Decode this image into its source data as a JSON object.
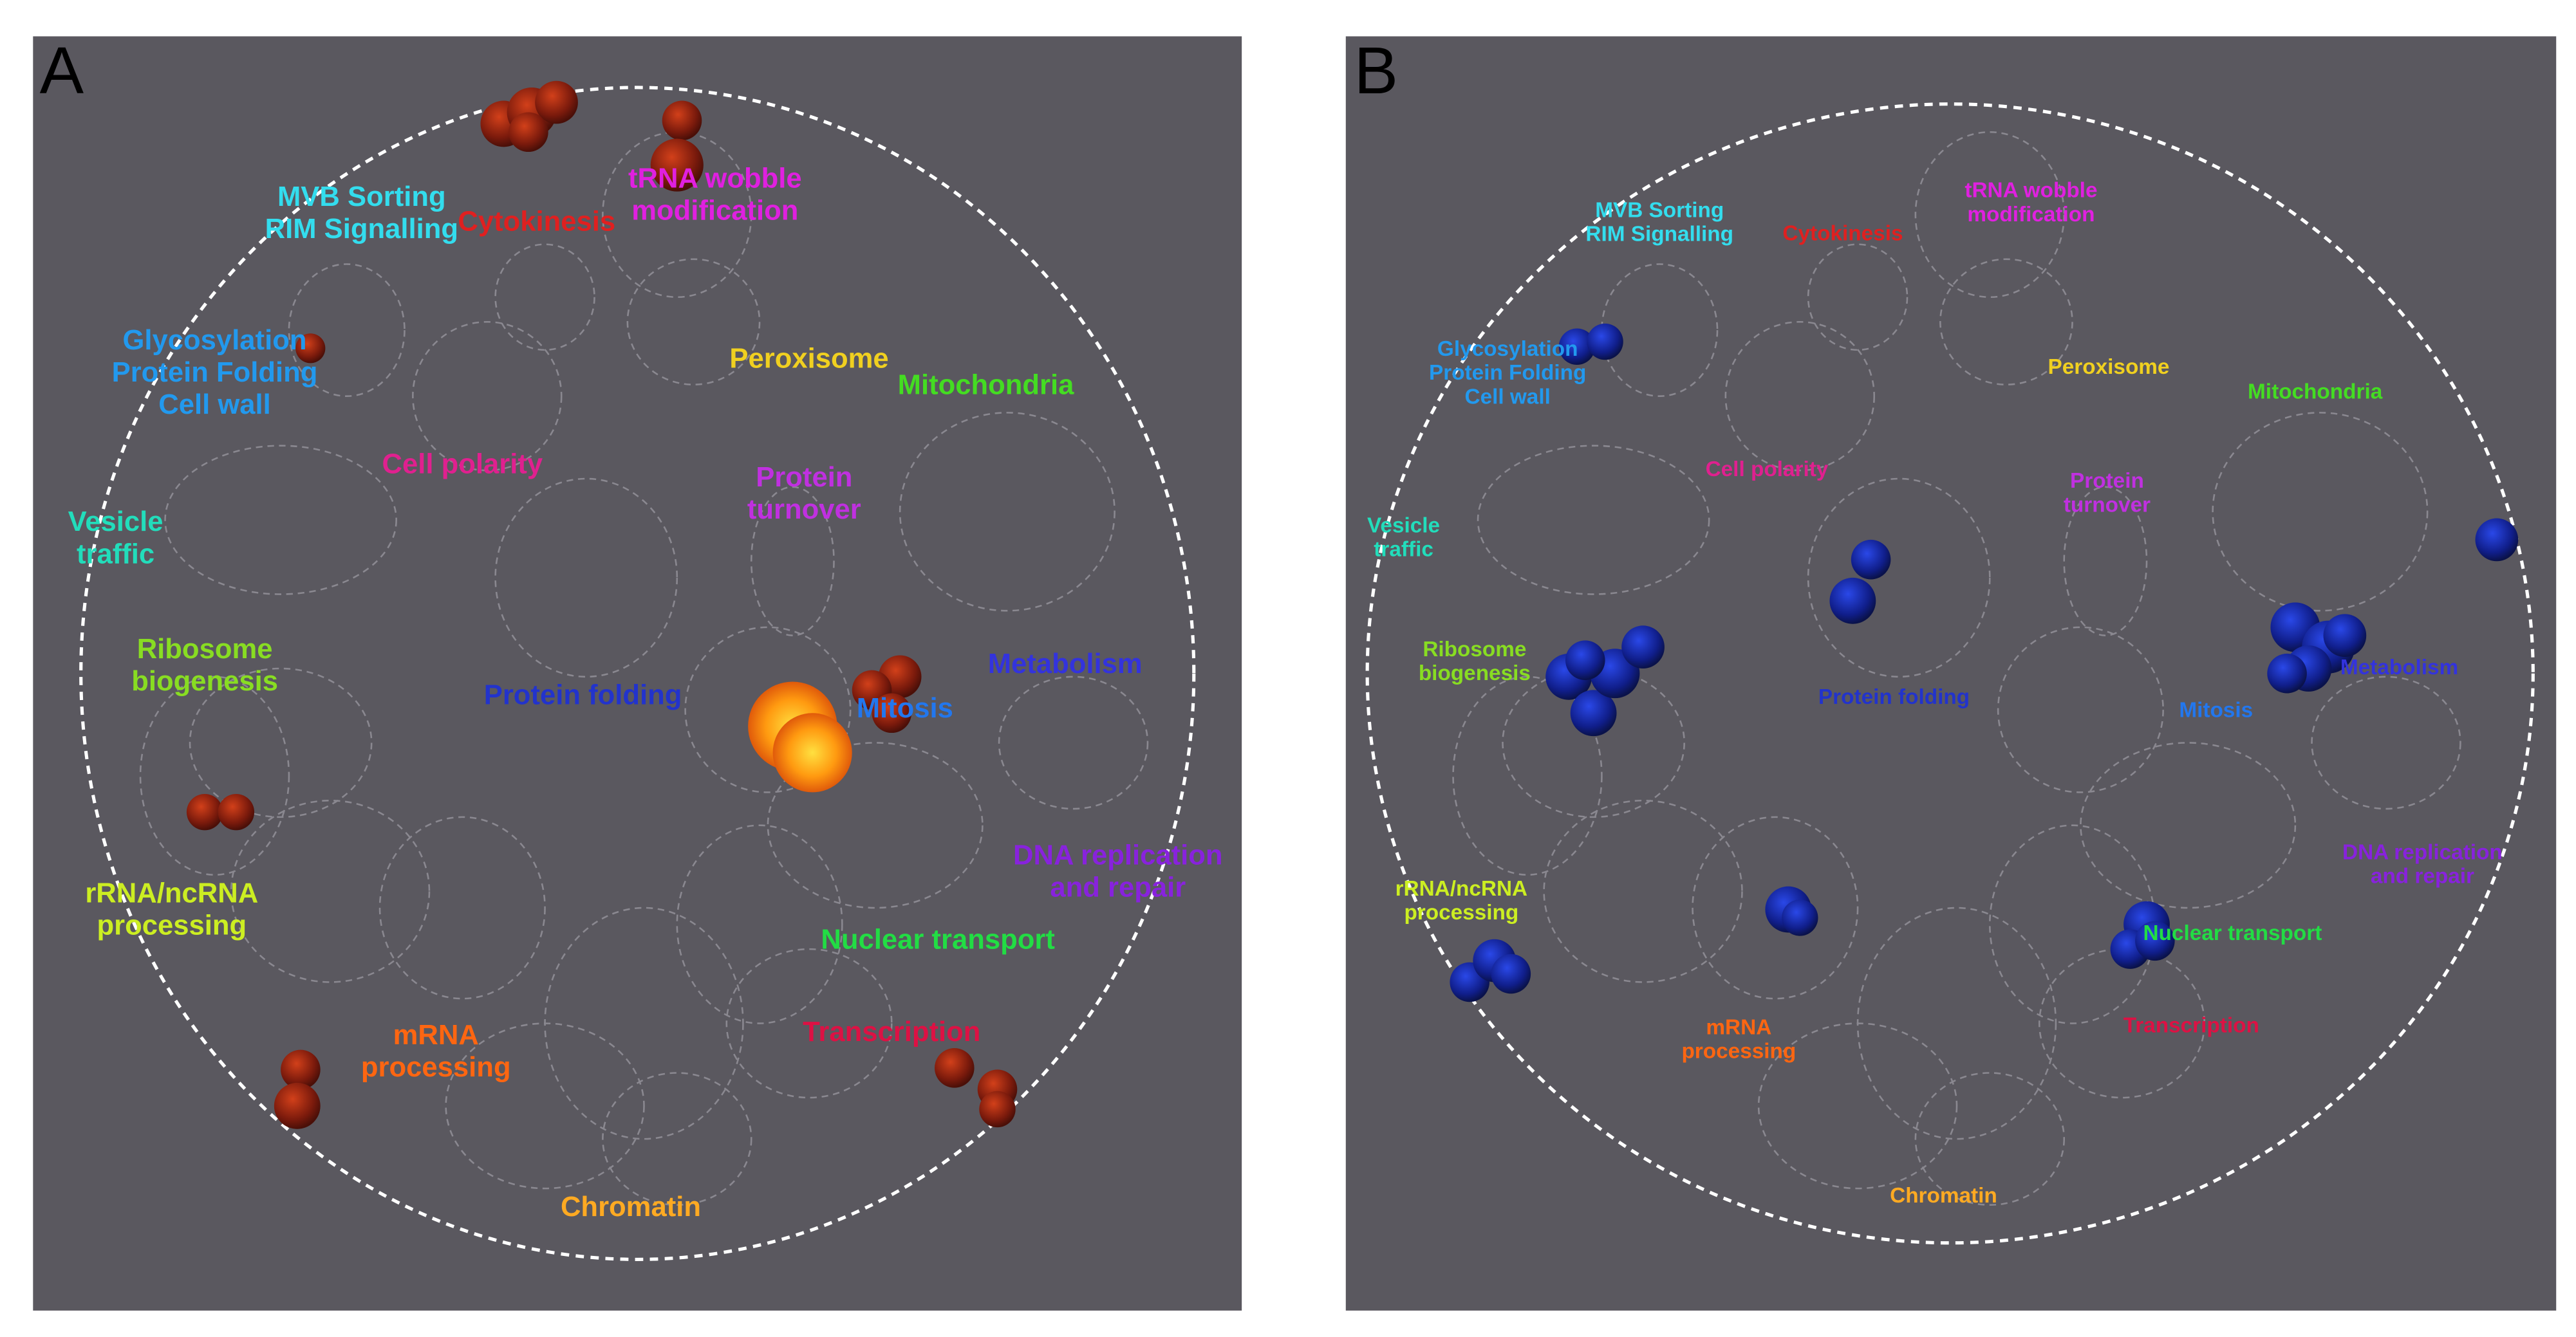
{
  "panels": [
    {
      "letter": "A",
      "labels": [
        {
          "lines": [
            "MVB Sorting",
            "RIM Signalling"
          ]
        },
        {
          "lines": [
            "Cytokinesis"
          ]
        },
        {
          "lines": [
            "tRNA wobble",
            "modification"
          ]
        },
        {
          "lines": [
            "Glycosylation",
            "Protein Folding",
            "Cell wall"
          ]
        },
        {
          "lines": [
            "Peroxisome"
          ]
        },
        {
          "lines": [
            "Mitochondria"
          ]
        },
        {
          "lines": [
            "Cell polarity"
          ]
        },
        {
          "lines": [
            "Protein",
            "turnover"
          ]
        },
        {
          "lines": [
            "Vesicle",
            "traffic"
          ]
        },
        {
          "lines": [
            "Ribosome",
            "biogenesis"
          ]
        },
        {
          "lines": [
            "Protein folding"
          ]
        },
        {
          "lines": [
            "Mitosis"
          ]
        },
        {
          "lines": [
            "Metabolism"
          ]
        },
        {
          "lines": [
            "DNA replication",
            "and repair"
          ]
        },
        {
          "lines": [
            "rRNA/ncRNA",
            "processing"
          ]
        },
        {
          "lines": [
            "Nuclear transport"
          ]
        },
        {
          "lines": [
            "mRNA",
            "processing"
          ]
        },
        {
          "lines": [
            "Transcription"
          ]
        },
        {
          "lines": [
            "Chromatin"
          ]
        }
      ]
    },
    {
      "letter": "B",
      "labels": [
        {
          "lines": [
            "MVB Sorting",
            "RIM Signalling"
          ]
        },
        {
          "lines": [
            "Cytokinesis"
          ]
        },
        {
          "lines": [
            "tRNA wobble",
            "modification"
          ]
        },
        {
          "lines": [
            "Glycosylation",
            "Protein Folding",
            "Cell wall"
          ]
        },
        {
          "lines": [
            "Peroxisome"
          ]
        },
        {
          "lines": [
            "Mitochondria"
          ]
        },
        {
          "lines": [
            "Cell polarity"
          ]
        },
        {
          "lines": [
            "Protein",
            "turnover"
          ]
        },
        {
          "lines": [
            "Vesicle",
            "traffic"
          ]
        },
        {
          "lines": [
            "Ribosome",
            "biogenesis"
          ]
        },
        {
          "lines": [
            "Protein folding"
          ]
        },
        {
          "lines": [
            "Mitosis"
          ]
        },
        {
          "lines": [
            "Metabolism"
          ]
        },
        {
          "lines": [
            "DNA replication",
            "and repair"
          ]
        },
        {
          "lines": [
            "rRNA/ncRNA",
            "processing"
          ]
        },
        {
          "lines": [
            "Nuclear transport"
          ]
        },
        {
          "lines": [
            "mRNA",
            "processing"
          ]
        },
        {
          "lines": [
            "Transcription"
          ]
        },
        {
          "lines": [
            "Chromatin"
          ]
        }
      ]
    }
  ]
}
